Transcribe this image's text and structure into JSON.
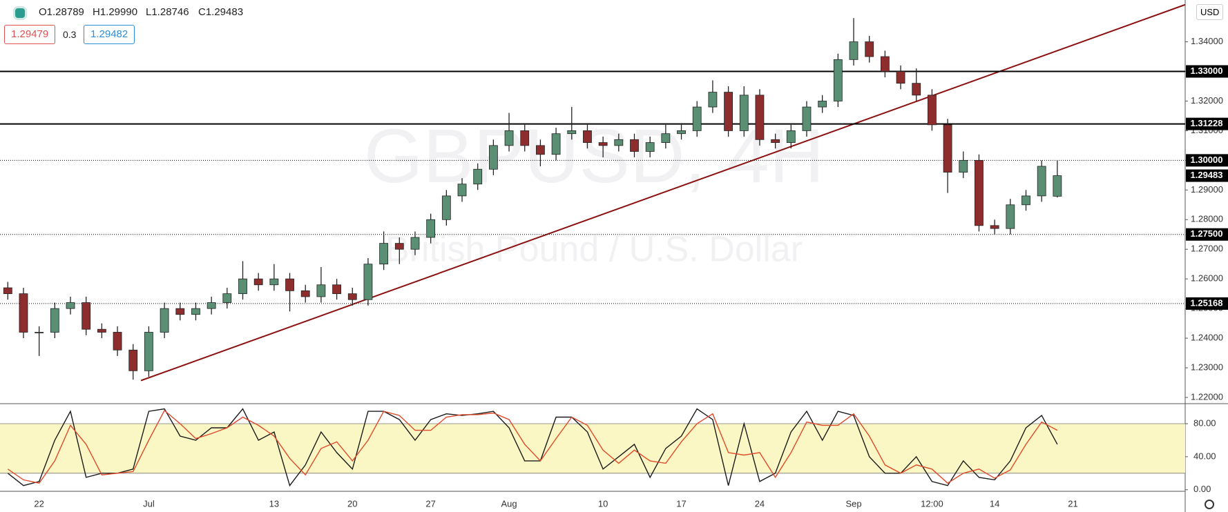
{
  "header": {
    "ohlc": [
      "O1.28789",
      "H1.29990",
      "L1.28746",
      "C1.29483"
    ],
    "bid": "1.29479",
    "spread": "0.3",
    "ask": "1.29482",
    "currency": "USD"
  },
  "chart_data": [
    {
      "type": "candlestick",
      "watermark": [
        "GBPUSD, 4H",
        "British Pound / U.S. Dollar"
      ],
      "up_color": "#5a8f74",
      "down_color": "#8e2d2d",
      "categories": [
        null,
        null,
        "22",
        null,
        null,
        null,
        null,
        null,
        null,
        "Jul",
        null,
        null,
        null,
        null,
        null,
        null,
        null,
        "13",
        null,
        null,
        null,
        null,
        "20",
        null,
        null,
        null,
        null,
        "27",
        null,
        null,
        null,
        null,
        "Aug",
        null,
        null,
        null,
        null,
        null,
        "10",
        null,
        null,
        null,
        null,
        "17",
        null,
        null,
        null,
        null,
        "24",
        null,
        null,
        null,
        null,
        null,
        "Sep",
        null,
        null,
        null,
        null,
        "12:00",
        null,
        null,
        null,
        "14",
        null,
        null,
        null,
        null,
        "21",
        null,
        null,
        null,
        null,
        null,
        null,
        null
      ],
      "ohlc": [
        [
          1.257,
          1.259,
          1.253,
          1.255
        ],
        [
          1.255,
          1.257,
          1.24,
          1.242
        ],
        [
          1.242,
          1.244,
          1.234,
          1.242
        ],
        [
          1.242,
          1.252,
          1.24,
          1.25
        ],
        [
          1.25,
          1.254,
          1.248,
          1.252
        ],
        [
          1.252,
          1.254,
          1.241,
          1.243
        ],
        [
          1.243,
          1.245,
          1.24,
          1.242
        ],
        [
          1.242,
          1.244,
          1.234,
          1.236
        ],
        [
          1.236,
          1.238,
          1.226,
          1.229
        ],
        [
          1.229,
          1.244,
          1.227,
          1.242
        ],
        [
          1.242,
          1.252,
          1.24,
          1.25
        ],
        [
          1.25,
          1.252,
          1.246,
          1.248
        ],
        [
          1.248,
          1.252,
          1.246,
          1.25
        ],
        [
          1.25,
          1.254,
          1.248,
          1.252
        ],
        [
          1.252,
          1.257,
          1.25,
          1.255
        ],
        [
          1.255,
          1.266,
          1.253,
          1.26
        ],
        [
          1.26,
          1.262,
          1.256,
          1.258
        ],
        [
          1.258,
          1.265,
          1.256,
          1.26
        ],
        [
          1.26,
          1.262,
          1.249,
          1.256
        ],
        [
          1.256,
          1.258,
          1.252,
          1.254
        ],
        [
          1.254,
          1.264,
          1.252,
          1.258
        ],
        [
          1.258,
          1.26,
          1.253,
          1.255
        ],
        [
          1.255,
          1.257,
          1.251,
          1.253
        ],
        [
          1.253,
          1.267,
          1.251,
          1.265
        ],
        [
          1.265,
          1.276,
          1.263,
          1.272
        ],
        [
          1.272,
          1.274,
          1.265,
          1.27
        ],
        [
          1.27,
          1.276,
          1.268,
          1.274
        ],
        [
          1.274,
          1.282,
          1.272,
          1.28
        ],
        [
          1.28,
          1.29,
          1.278,
          1.288
        ],
        [
          1.288,
          1.294,
          1.286,
          1.292
        ],
        [
          1.292,
          1.299,
          1.29,
          1.297
        ],
        [
          1.297,
          1.307,
          1.295,
          1.305
        ],
        [
          1.305,
          1.316,
          1.303,
          1.31
        ],
        [
          1.31,
          1.312,
          1.303,
          1.305
        ],
        [
          1.305,
          1.307,
          1.298,
          1.302
        ],
        [
          1.302,
          1.311,
          1.3,
          1.309
        ],
        [
          1.309,
          1.318,
          1.307,
          1.31
        ],
        [
          1.31,
          1.312,
          1.304,
          1.306
        ],
        [
          1.306,
          1.308,
          1.301,
          1.305
        ],
        [
          1.305,
          1.309,
          1.303,
          1.307
        ],
        [
          1.307,
          1.309,
          1.301,
          1.303
        ],
        [
          1.303,
          1.308,
          1.301,
          1.306
        ],
        [
          1.306,
          1.312,
          1.304,
          1.309
        ],
        [
          1.309,
          1.312,
          1.307,
          1.31
        ],
        [
          1.31,
          1.32,
          1.308,
          1.318
        ],
        [
          1.318,
          1.327,
          1.316,
          1.323
        ],
        [
          1.323,
          1.325,
          1.308,
          1.31
        ],
        [
          1.31,
          1.325,
          1.308,
          1.322
        ],
        [
          1.322,
          1.324,
          1.305,
          1.307
        ],
        [
          1.307,
          1.309,
          1.304,
          1.306
        ],
        [
          1.306,
          1.312,
          1.304,
          1.31
        ],
        [
          1.31,
          1.32,
          1.308,
          1.318
        ],
        [
          1.318,
          1.322,
          1.316,
          1.32
        ],
        [
          1.32,
          1.336,
          1.318,
          1.334
        ],
        [
          1.334,
          1.348,
          1.332,
          1.34
        ],
        [
          1.34,
          1.342,
          1.333,
          1.335
        ],
        [
          1.335,
          1.337,
          1.328,
          1.33
        ],
        [
          1.33,
          1.332,
          1.324,
          1.326
        ],
        [
          1.326,
          1.331,
          1.32,
          1.322
        ],
        [
          1.322,
          1.324,
          1.31,
          1.312
        ],
        [
          1.312,
          1.314,
          1.289,
          1.296
        ],
        [
          1.296,
          1.303,
          1.294,
          1.3
        ],
        [
          1.3,
          1.302,
          1.276,
          1.278
        ],
        [
          1.278,
          1.28,
          1.275,
          1.277
        ],
        [
          1.277,
          1.287,
          1.275,
          1.285
        ],
        [
          1.285,
          1.29,
          1.283,
          1.288
        ],
        [
          1.288,
          1.3,
          1.286,
          1.298
        ],
        [
          1.28789,
          1.2999,
          1.28746,
          1.29483
        ],
        null,
        null,
        null,
        null,
        null,
        null,
        null,
        null
      ],
      "ylim": [
        1.2179,
        1.3541
      ],
      "yticks": [
        {
          "value": 1.22,
          "label": "1.22000"
        },
        {
          "value": 1.23,
          "label": "1.23000"
        },
        {
          "value": 1.24,
          "label": "1.24000"
        },
        {
          "value": 1.25,
          "label": "1.25000"
        },
        {
          "value": 1.26,
          "label": "1.26000"
        },
        {
          "value": 1.27,
          "label": "1.27000"
        },
        {
          "value": 1.28,
          "label": "1.28000"
        },
        {
          "value": 1.29,
          "label": "1.29000"
        },
        {
          "value": 1.3,
          "label": "1.30000"
        },
        {
          "value": 1.31,
          "label": "1.31000"
        },
        {
          "value": 1.32,
          "label": "1.32000"
        },
        {
          "value": 1.33,
          "label": "1.33000"
        },
        {
          "value": 1.34,
          "label": "1.34000"
        }
      ],
      "levels": [
        {
          "value": 1.33,
          "label": "1.33000",
          "style": "solid"
        },
        {
          "value": 1.31228,
          "label": "1.31228",
          "style": "solid"
        },
        {
          "value": 1.3,
          "label": "1.30000",
          "style": "dotted"
        },
        {
          "value": 1.275,
          "label": "1.27500",
          "style": "dotted"
        },
        {
          "value": 1.25168,
          "label": "1.25168",
          "style": "dotted"
        }
      ],
      "trendline": {
        "x": [
          8.5,
          75.15
        ],
        "y": [
          1.2257,
          1.3525
        ],
        "color": "#8b1010"
      }
    },
    {
      "type": "line",
      "ylim": [
        -1.9,
        102.6
      ],
      "band": [
        20,
        80
      ],
      "band_color": "#fbf7c4",
      "yticks": [
        {
          "value": 0,
          "label": "0.00"
        },
        {
          "value": 40,
          "label": "40.00"
        },
        {
          "value": 80,
          "label": "80.00"
        }
      ],
      "series": [
        {
          "color": "#1a1a1a",
          "values": [
            20,
            5,
            10,
            60,
            95,
            15,
            20,
            20,
            25,
            95,
            98,
            65,
            60,
            75,
            75,
            98,
            60,
            70,
            5,
            30,
            70,
            45,
            25,
            95,
            95,
            85,
            60,
            85,
            92,
            90,
            92,
            95,
            75,
            35,
            35,
            88,
            88,
            70,
            25,
            40,
            55,
            15,
            50,
            65,
            98,
            85,
            5,
            80,
            10,
            20,
            70,
            95,
            60,
            95,
            90,
            40,
            20,
            20,
            40,
            10,
            5,
            35,
            15,
            12,
            35,
            75,
            90,
            55,
            null,
            null,
            null,
            null,
            null,
            null,
            null,
            null
          ]
        },
        {
          "color": "#e0492a",
          "values": [
            25,
            12,
            8,
            35,
            78,
            55,
            18,
            20,
            22,
            60,
            96,
            80,
            62,
            68,
            75,
            88,
            78,
            65,
            38,
            18,
            50,
            58,
            35,
            60,
            95,
            90,
            72,
            72,
            88,
            91,
            91,
            93,
            85,
            55,
            35,
            62,
            88,
            78,
            48,
            32,
            48,
            35,
            32,
            58,
            80,
            92,
            45,
            42,
            45,
            15,
            45,
            82,
            78,
            78,
            92,
            65,
            30,
            20,
            30,
            25,
            8,
            20,
            25,
            14,
            24,
            55,
            82,
            72,
            null,
            null,
            null,
            null,
            null,
            null,
            null,
            null
          ]
        }
      ]
    }
  ]
}
